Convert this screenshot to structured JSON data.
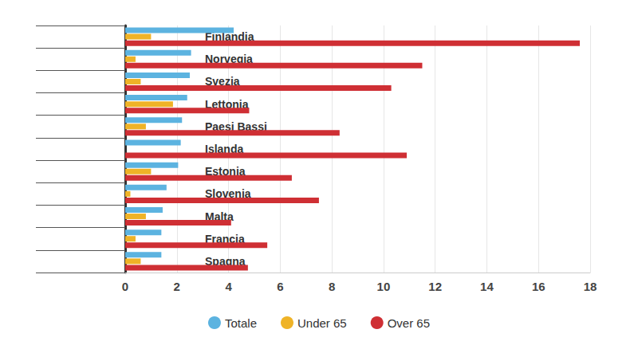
{
  "chart_data": {
    "type": "bar",
    "orientation": "horizontal",
    "categories": [
      "Finlandia",
      "Norvegia",
      "Svezia",
      "Lettonia",
      "Paesi Bassi",
      "Islanda",
      "Estonia",
      "Slovenia",
      "Malta",
      "Francia",
      "Spagna"
    ],
    "series": [
      {
        "name": "Totale",
        "color": "#5cb3e0",
        "values": [
          4.2,
          2.55,
          2.5,
          2.4,
          2.2,
          2.15,
          2.05,
          1.6,
          1.45,
          1.4,
          1.4
        ]
      },
      {
        "name": "Under 65",
        "color": "#efb327",
        "values": [
          1.0,
          0.4,
          0.6,
          1.85,
          0.8,
          null,
          1.0,
          0.2,
          0.8,
          0.4,
          0.6
        ]
      },
      {
        "name": "Over 65",
        "color": "#cf2f34",
        "values": [
          17.6,
          11.5,
          10.3,
          4.8,
          8.3,
          10.9,
          6.45,
          7.5,
          4.1,
          5.5,
          4.75
        ]
      }
    ],
    "xlim": [
      0,
      18
    ],
    "xticks": [
      0,
      2,
      4,
      6,
      8,
      10,
      12,
      14,
      16,
      18
    ],
    "grid": true,
    "legend": "bottom"
  }
}
